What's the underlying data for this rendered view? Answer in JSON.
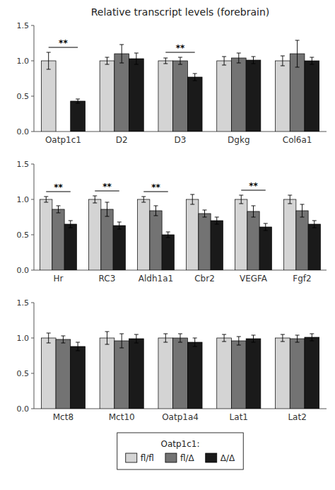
{
  "chart_data": [
    {
      "type": "bar",
      "title": "Relative transcript levels (forebrain)",
      "legend_title": "Oatp1c1:",
      "legend": "bottom",
      "grid": false,
      "categories": [
        "Oatp1c1",
        "D2",
        "D3",
        "Dgkg",
        "Col6a1"
      ],
      "series": [
        {
          "name": "fl/fl",
          "color": "#d4d4d4",
          "values": [
            1.0,
            1.0,
            1.0,
            1.0,
            1.0
          ],
          "errors": [
            0.12,
            0.05,
            0.04,
            0.06,
            0.07
          ]
        },
        {
          "name": "fl/Δ",
          "color": "#737373",
          "values": [
            null,
            1.1,
            1.0,
            1.04,
            1.1
          ],
          "errors": [
            null,
            0.13,
            0.05,
            0.07,
            0.19
          ]
        },
        {
          "name": "Δ/Δ",
          "color": "#1a1a1a",
          "values": [
            0.43,
            1.03,
            0.77,
            1.01,
            1.0
          ],
          "errors": [
            0.03,
            0.08,
            0.05,
            0.05,
            0.05
          ]
        }
      ],
      "annotations": [
        {
          "x": "Oatp1c1",
          "label": "**"
        },
        {
          "x": "D3",
          "label": "**"
        }
      ],
      "ylim": [
        0.0,
        1.5
      ],
      "yticks": [
        {
          "value": 0.0,
          "label": "0.0"
        },
        0.5,
        {
          "value": 1.0,
          "label": "1.0"
        },
        1.5
      ]
    },
    {
      "type": "bar",
      "grid": false,
      "categories": [
        "Hr",
        "RC3",
        "Aldh1a1",
        "Cbr2",
        "VEGFA",
        "Fgf2"
      ],
      "series": [
        {
          "name": "fl/fl",
          "color": "#d4d4d4",
          "values": [
            1.0,
            1.0,
            1.0,
            1.0,
            1.0,
            1.0
          ],
          "errors": [
            0.04,
            0.05,
            0.04,
            0.07,
            0.06,
            0.06
          ]
        },
        {
          "name": "fl/Δ",
          "color": "#737373",
          "values": [
            0.86,
            0.86,
            0.84,
            0.8,
            0.83,
            0.84
          ],
          "errors": [
            0.05,
            0.1,
            0.07,
            0.05,
            0.08,
            0.09
          ]
        },
        {
          "name": "Δ/Δ",
          "color": "#1a1a1a",
          "values": [
            0.65,
            0.63,
            0.5,
            0.7,
            0.61,
            0.65
          ],
          "errors": [
            0.05,
            0.05,
            0.04,
            0.05,
            0.05,
            0.05
          ]
        }
      ],
      "annotations": [
        {
          "x": "Hr",
          "label": "**"
        },
        {
          "x": "RC3",
          "label": "**"
        },
        {
          "x": "Aldh1a1",
          "label": "**"
        },
        {
          "x": "VEGFA",
          "label": "**"
        }
      ],
      "ylim": [
        0.0,
        1.5
      ],
      "yticks": [
        {
          "value": 0.0,
          "label": "0.0"
        },
        0.5,
        {
          "value": 1.0,
          "label": "1.0"
        },
        1.5
      ]
    },
    {
      "type": "bar",
      "grid": false,
      "categories": [
        "Mct8",
        "Mct10",
        "Oatp1a4",
        "Lat1",
        "Lat2"
      ],
      "series": [
        {
          "name": "fl/fl",
          "color": "#d4d4d4",
          "values": [
            1.0,
            1.0,
            1.0,
            1.0,
            1.0
          ],
          "errors": [
            0.07,
            0.09,
            0.06,
            0.05,
            0.05
          ]
        },
        {
          "name": "fl/Δ",
          "color": "#737373",
          "values": [
            0.98,
            0.96,
            1.0,
            0.96,
            0.99
          ],
          "errors": [
            0.05,
            0.1,
            0.06,
            0.06,
            0.05
          ]
        },
        {
          "name": "Δ/Δ",
          "color": "#1a1a1a",
          "values": [
            0.88,
            0.99,
            0.94,
            0.99,
            1.01
          ],
          "errors": [
            0.06,
            0.06,
            0.06,
            0.05,
            0.05
          ]
        }
      ],
      "annotations": [],
      "ylim": [
        0.0,
        1.5
      ],
      "yticks": [
        {
          "value": 0.0,
          "label": "0.0"
        },
        0.5,
        {
          "value": 1.0,
          "label": "1.0"
        },
        1.5
      ]
    }
  ]
}
